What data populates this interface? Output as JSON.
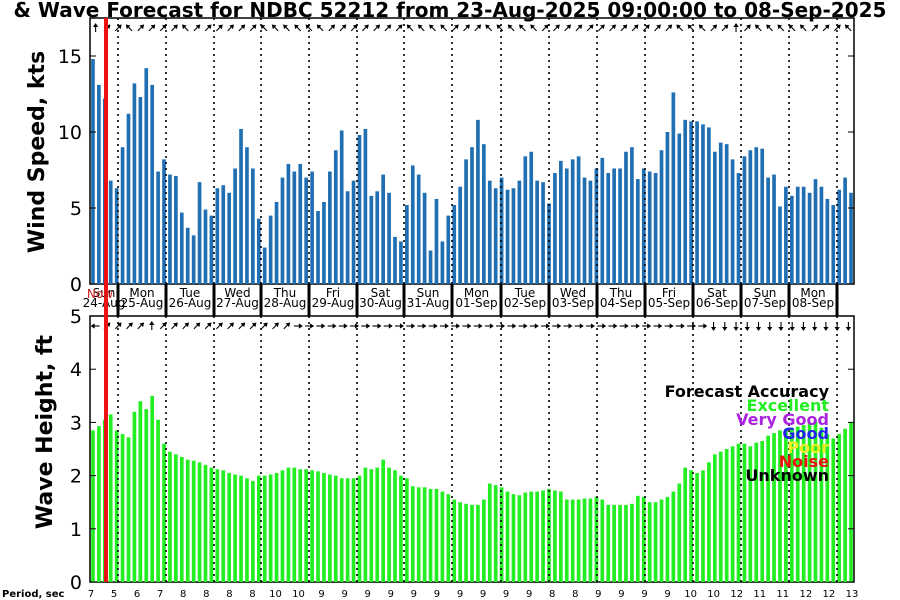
{
  "chart_data": {
    "title": "& Wave Forecast for NDBC 52212 from 23-Aug-2025 09:00:00 to 08-Sep-2025",
    "type": "bar",
    "colors": {
      "wind_bar": "#1f6fb2",
      "wave_bar": "#22ee22",
      "now_line": "#ee1111",
      "now_label": "#cc2222"
    },
    "now_label": "Now",
    "days": [
      {
        "day": "Sun",
        "date": "24-Aug"
      },
      {
        "day": "Mon",
        "date": "25-Aug"
      },
      {
        "day": "Tue",
        "date": "26-Aug"
      },
      {
        "day": "Wed",
        "date": "27-Aug"
      },
      {
        "day": "Thu",
        "date": "28-Aug"
      },
      {
        "day": "Fri",
        "date": "29-Aug"
      },
      {
        "day": "Sat",
        "date": "30-Aug"
      },
      {
        "day": "Sun",
        "date": "31-Aug"
      },
      {
        "day": "Mon",
        "date": "01-Sep"
      },
      {
        "day": "Tue",
        "date": "02-Sep"
      },
      {
        "day": "Wed",
        "date": "03-Sep"
      },
      {
        "day": "Thu",
        "date": "04-Sep"
      },
      {
        "day": "Fri",
        "date": "05-Sep"
      },
      {
        "day": "Sat",
        "date": "06-Sep"
      },
      {
        "day": "Sun",
        "date": "07-Sep"
      },
      {
        "day": "Mon",
        "date": "08-Sep"
      }
    ],
    "wind": {
      "ylabel": "Wind Speed, kts",
      "ylim": [
        0,
        17.5
      ],
      "yticks": [
        0,
        5,
        10,
        15
      ],
      "values": [
        14.8,
        13.1,
        12.2,
        6.8,
        6.3,
        9.0,
        11.2,
        13.2,
        12.3,
        14.2,
        13.1,
        7.4,
        8.2,
        7.2,
        7.1,
        4.7,
        3.7,
        3.2,
        6.7,
        4.9,
        4.5,
        6.3,
        6.5,
        6.0,
        7.6,
        10.2,
        9.0,
        7.6,
        4.3,
        2.4,
        4.5,
        5.4,
        7.0,
        7.9,
        7.4,
        7.9,
        7.0,
        7.4,
        4.8,
        5.4,
        7.4,
        8.8,
        10.1,
        6.1,
        6.8,
        9.8,
        10.2,
        5.8,
        6.1,
        7.2,
        6.0,
        3.1,
        2.8,
        5.2,
        7.8,
        7.2,
        6.0,
        2.2,
        5.6,
        2.8,
        4.5,
        5.2,
        6.4,
        8.2,
        9.0,
        10.8,
        9.2,
        6.8,
        6.3,
        7.0,
        6.2,
        6.3,
        6.8,
        8.4,
        8.7,
        6.8,
        6.7,
        5.3,
        7.3,
        8.1,
        7.6,
        8.2,
        8.4,
        7.0,
        6.8,
        7.6,
        8.3,
        7.3,
        7.6,
        7.6,
        8.7,
        9.0,
        6.9,
        7.6,
        7.4,
        7.3,
        8.8,
        10.0,
        12.6,
        9.9,
        10.8,
        10.7,
        10.7,
        10.5,
        10.3,
        8.7,
        9.3,
        9.2,
        8.2,
        7.3,
        8.4,
        8.8,
        9.0,
        8.9,
        7.0,
        7.2,
        5.1,
        6.4,
        5.8,
        6.4,
        6.4,
        6.0,
        6.9,
        6.4,
        5.6,
        5.2,
        6.2,
        7.0,
        6.0
      ]
    },
    "wave": {
      "ylabel": "Wave Height, ft",
      "ylim": [
        0,
        5
      ],
      "yticks": [
        0,
        1,
        2,
        3,
        4,
        5
      ],
      "values": [
        2.85,
        2.93,
        3.05,
        3.15,
        2.85,
        2.78,
        2.72,
        3.2,
        3.4,
        3.25,
        3.5,
        3.05,
        2.6,
        2.45,
        2.4,
        2.35,
        2.3,
        2.28,
        2.25,
        2.2,
        2.15,
        2.12,
        2.1,
        2.05,
        2.02,
        2.0,
        1.95,
        1.9,
        2.0,
        2.0,
        2.02,
        2.05,
        2.1,
        2.15,
        2.15,
        2.12,
        2.12,
        2.1,
        2.08,
        2.05,
        2.02,
        2.0,
        1.95,
        1.95,
        1.95,
        2.0,
        2.15,
        2.12,
        2.15,
        2.3,
        2.15,
        2.1,
        2.0,
        1.95,
        1.8,
        1.78,
        1.78,
        1.75,
        1.75,
        1.7,
        1.65,
        1.55,
        1.5,
        1.47,
        1.45,
        1.45,
        1.55,
        1.85,
        1.82,
        1.78,
        1.7,
        1.65,
        1.63,
        1.68,
        1.7,
        1.7,
        1.72,
        1.75,
        1.72,
        1.7,
        1.55,
        1.55,
        1.55,
        1.57,
        1.57,
        1.6,
        1.55,
        1.45,
        1.45,
        1.45,
        1.45,
        1.47,
        1.62,
        1.6,
        1.5,
        1.5,
        1.55,
        1.6,
        1.7,
        1.85,
        2.15,
        2.1,
        2.05,
        2.1,
        2.25,
        2.4,
        2.45,
        2.5,
        2.55,
        2.6,
        2.6,
        2.55,
        2.62,
        2.65,
        2.75,
        2.8,
        2.85,
        2.88,
        2.9,
        2.92,
        2.95,
        3.0,
        3.02,
        2.9,
        2.78,
        2.7,
        2.78,
        2.88,
        3.0
      ]
    },
    "period_label": "Period, sec",
    "periods": [
      7,
      5,
      6,
      7,
      8,
      8,
      8,
      8,
      10,
      10,
      9,
      9,
      9,
      9,
      9,
      9,
      9,
      9,
      9,
      9,
      8,
      8,
      9,
      9,
      9,
      9,
      10,
      10,
      12,
      11,
      11,
      12,
      12,
      13
    ],
    "wind_arrows_deg": [
      0,
      45,
      45,
      315,
      45,
      45,
      45,
      45,
      315,
      45,
      45,
      45,
      45,
      45,
      45,
      315,
      315,
      315,
      315,
      315,
      315,
      45,
      45,
      45,
      45,
      45,
      45,
      45,
      315,
      315,
      315,
      315,
      45,
      45,
      45,
      315,
      315,
      315,
      315,
      315,
      45,
      45,
      45,
      45,
      45,
      45,
      45,
      45,
      45,
      45,
      45,
      45,
      315,
      315,
      315,
      45,
      45,
      0,
      45,
      315,
      315,
      315,
      315,
      315,
      45,
      45,
      45,
      315
    ],
    "wave_arrows_deg": [
      270,
      45,
      45,
      45,
      45,
      0,
      45,
      45,
      45,
      45,
      45,
      45,
      45,
      45,
      45,
      45,
      45,
      45,
      90,
      90,
      90,
      90,
      90,
      90,
      90,
      90,
      90,
      90,
      90,
      90,
      90,
      90,
      90,
      90,
      90,
      90,
      90,
      90,
      90,
      90,
      90,
      90,
      90,
      90,
      90,
      90,
      90,
      90,
      90,
      90,
      90,
      90,
      90,
      90,
      90,
      180,
      180,
      180,
      180,
      180,
      180,
      180,
      180,
      180,
      180,
      180,
      180,
      180
    ],
    "legend": {
      "title": "Forecast Accuracy",
      "items": [
        {
          "label": "Excellent",
          "color": "#22ee22"
        },
        {
          "label": "Very Good",
          "color": "#aa22dd"
        },
        {
          "label": "Good",
          "color": "#2222ee"
        },
        {
          "label": "Poor",
          "color": "#eeee22"
        },
        {
          "label": "Noise",
          "color": "#ee1111"
        },
        {
          "label": "Unknown",
          "color": "#000000"
        }
      ]
    }
  }
}
